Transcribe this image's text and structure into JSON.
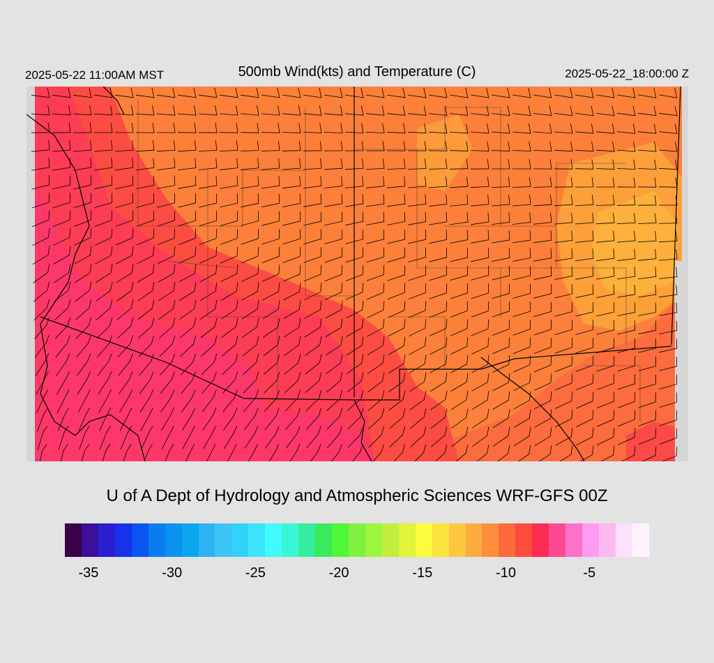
{
  "header": {
    "local_time": "2025-05-22 11:00AM MST",
    "title": "500mb Wind(kts) and Temperature (C)",
    "valid_time": "2025-05-22_18:00:00 Z"
  },
  "footer": {
    "credit": "U of A Dept of Hydrology and Atmospheric Sciences WRF-GFS 00Z"
  },
  "colorbar": {
    "colors": [
      "#3a0047",
      "#3b0f9a",
      "#2c1fcf",
      "#1732e8",
      "#0a55f0",
      "#0a7cf0",
      "#0a92ee",
      "#0aa6ef",
      "#2eb3f2",
      "#3dc4f6",
      "#33d3f9",
      "#3de3fc",
      "#3ffbfb",
      "#39f6d6",
      "#36ec9f",
      "#3bea5c",
      "#4ff63a",
      "#7ff240",
      "#9ef53f",
      "#c1ee3f",
      "#e0f43c",
      "#fcfb3d",
      "#fbe33d",
      "#fcc83e",
      "#fcac3e",
      "#fd8e3c",
      "#fd6a3b",
      "#fd4b3e",
      "#fd2c52",
      "#fd4a93",
      "#fd72c9",
      "#fd9cf0",
      "#fdbaf0",
      "#fde0fb",
      "#fef3fc"
    ],
    "ticks": [
      "-35",
      "-30",
      "-25",
      "-20",
      "-15",
      "-10",
      "-5"
    ],
    "tick_values": [
      -35,
      -30,
      -25,
      -20,
      -15,
      -10,
      -5
    ],
    "range": [
      -36,
      -1
    ]
  },
  "map": {
    "background_color": "#e3e3e3",
    "land_edge_color": "#d5d5d5",
    "temperature_zones": {
      "coldest": "#fd3868",
      "cold": "#fd3d55",
      "mid": "#fd4d43",
      "warm": "#fd6c3e",
      "warmer": "#fd803a",
      "warmest": "#fda03a",
      "hottest": "#fdb03b"
    }
  }
}
